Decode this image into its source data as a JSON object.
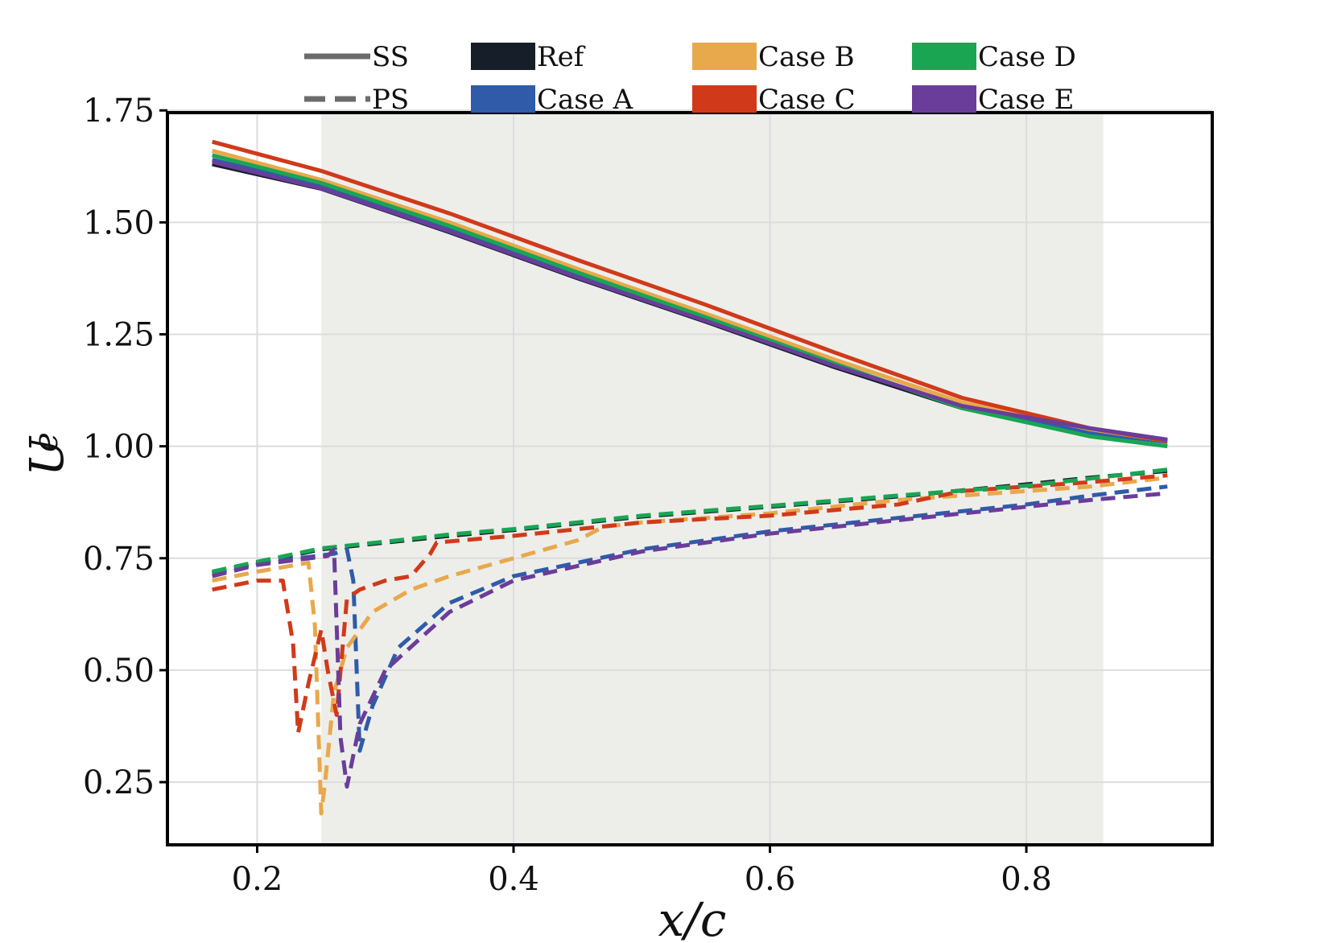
{
  "chart_data": {
    "type": "line",
    "xlabel": "x/c",
    "ylabel": "U_e",
    "ylabel_main": "U",
    "ylabel_sub": "e",
    "xlim": [
      0.13,
      0.945
    ],
    "ylim": [
      0.11,
      1.745
    ],
    "xticks": [
      0.2,
      0.4,
      0.6,
      0.8
    ],
    "xtick_labels": [
      "0.2",
      "0.4",
      "0.6",
      "0.8"
    ],
    "yticks": [
      0.25,
      0.5,
      0.75,
      1.0,
      1.25,
      1.5,
      1.75
    ],
    "ytick_labels": [
      "0.25",
      "0.50",
      "0.75",
      "1.00",
      "1.25",
      "1.50",
      "1.75"
    ],
    "grid": true,
    "legend_position": "top, above plot",
    "shaded_region": {
      "x_start": 0.25,
      "x_end": 0.86,
      "color": "#edeeea"
    },
    "line_styles": [
      {
        "label": "SS",
        "style": "solid"
      },
      {
        "label": "PS",
        "style": "dashed"
      }
    ],
    "series": [
      {
        "name": "Ref",
        "color": "#161e2a",
        "ss": {
          "x": [
            0.165,
            0.25,
            0.35,
            0.45,
            0.55,
            0.65,
            0.75,
            0.85,
            0.91
          ],
          "y": [
            1.63,
            1.575,
            1.478,
            1.375,
            1.278,
            1.177,
            1.085,
            1.03,
            1.01
          ]
        },
        "ps": {
          "x": [
            0.165,
            0.2,
            0.25,
            0.3,
            0.35,
            0.4,
            0.5,
            0.6,
            0.7,
            0.8,
            0.85,
            0.91
          ],
          "y": [
            0.718,
            0.74,
            0.77,
            0.785,
            0.8,
            0.813,
            0.843,
            0.865,
            0.888,
            0.915,
            0.93,
            0.945
          ]
        }
      },
      {
        "name": "Case A",
        "color": "#2f5ba8",
        "ss": {
          "x": [
            0.165,
            0.25,
            0.35,
            0.45,
            0.55,
            0.65,
            0.75,
            0.85,
            0.91
          ],
          "y": [
            1.64,
            1.582,
            1.486,
            1.383,
            1.285,
            1.183,
            1.088,
            1.03,
            1.01
          ]
        },
        "ps": {
          "x": [
            0.165,
            0.2,
            0.26,
            0.27,
            0.275,
            0.28,
            0.29,
            0.31,
            0.35,
            0.4,
            0.5,
            0.6,
            0.7,
            0.8,
            0.85,
            0.91
          ],
          "y": [
            0.715,
            0.738,
            0.76,
            0.77,
            0.7,
            0.32,
            0.42,
            0.55,
            0.65,
            0.71,
            0.77,
            0.81,
            0.84,
            0.87,
            0.89,
            0.91
          ]
        }
      },
      {
        "name": "Case B",
        "color": "#e8a84c",
        "ss": {
          "x": [
            0.165,
            0.25,
            0.35,
            0.45,
            0.55,
            0.65,
            0.75,
            0.85,
            0.91
          ],
          "y": [
            1.66,
            1.595,
            1.5,
            1.396,
            1.296,
            1.194,
            1.098,
            1.038,
            1.012
          ]
        },
        "ps": {
          "x": [
            0.165,
            0.2,
            0.24,
            0.245,
            0.25,
            0.253,
            0.26,
            0.27,
            0.29,
            0.32,
            0.35,
            0.4,
            0.45,
            0.47,
            0.5,
            0.6,
            0.7,
            0.8,
            0.85,
            0.91
          ],
          "y": [
            0.7,
            0.72,
            0.74,
            0.6,
            0.18,
            0.25,
            0.45,
            0.55,
            0.63,
            0.68,
            0.71,
            0.75,
            0.79,
            0.82,
            0.83,
            0.85,
            0.88,
            0.9,
            0.91,
            0.93
          ]
        }
      },
      {
        "name": "Case C",
        "color": "#d03a1a",
        "ss": {
          "x": [
            0.165,
            0.25,
            0.35,
            0.45,
            0.55,
            0.65,
            0.75,
            0.85,
            0.91
          ],
          "y": [
            1.68,
            1.615,
            1.52,
            1.416,
            1.316,
            1.21,
            1.108,
            1.04,
            1.012
          ]
        },
        "ps": {
          "x": [
            0.165,
            0.2,
            0.22,
            0.228,
            0.232,
            0.24,
            0.25,
            0.255,
            0.262,
            0.27,
            0.28,
            0.3,
            0.32,
            0.335,
            0.34,
            0.36,
            0.4,
            0.5,
            0.6,
            0.7,
            0.75,
            0.8,
            0.85,
            0.91
          ],
          "y": [
            0.68,
            0.7,
            0.7,
            0.56,
            0.36,
            0.47,
            0.59,
            0.5,
            0.4,
            0.66,
            0.68,
            0.7,
            0.71,
            0.76,
            0.785,
            0.79,
            0.8,
            0.83,
            0.845,
            0.87,
            0.9,
            0.91,
            0.92,
            0.935
          ]
        }
      },
      {
        "name": "Case D",
        "color": "#1aa553",
        "ss": {
          "x": [
            0.165,
            0.25,
            0.35,
            0.45,
            0.55,
            0.65,
            0.75,
            0.85,
            0.91
          ],
          "y": [
            1.65,
            1.588,
            1.492,
            1.388,
            1.288,
            1.185,
            1.085,
            1.022,
            1.0
          ]
        },
        "ps": {
          "x": [
            0.165,
            0.2,
            0.25,
            0.3,
            0.35,
            0.4,
            0.5,
            0.6,
            0.7,
            0.8,
            0.85,
            0.91
          ],
          "y": [
            0.72,
            0.742,
            0.772,
            0.787,
            0.803,
            0.815,
            0.845,
            0.867,
            0.89,
            0.912,
            0.928,
            0.948
          ]
        }
      },
      {
        "name": "Case E",
        "color": "#6a3d9a",
        "ss": {
          "x": [
            0.165,
            0.25,
            0.35,
            0.45,
            0.55,
            0.65,
            0.75,
            0.85,
            0.91
          ],
          "y": [
            1.635,
            1.576,
            1.48,
            1.377,
            1.28,
            1.18,
            1.09,
            1.04,
            1.015
          ]
        },
        "ps": {
          "x": [
            0.165,
            0.2,
            0.255,
            0.26,
            0.265,
            0.27,
            0.28,
            0.3,
            0.35,
            0.4,
            0.5,
            0.6,
            0.7,
            0.8,
            0.85,
            0.91
          ],
          "y": [
            0.71,
            0.735,
            0.755,
            0.77,
            0.35,
            0.24,
            0.38,
            0.5,
            0.63,
            0.7,
            0.765,
            0.805,
            0.835,
            0.865,
            0.88,
            0.895
          ]
        }
      }
    ]
  }
}
